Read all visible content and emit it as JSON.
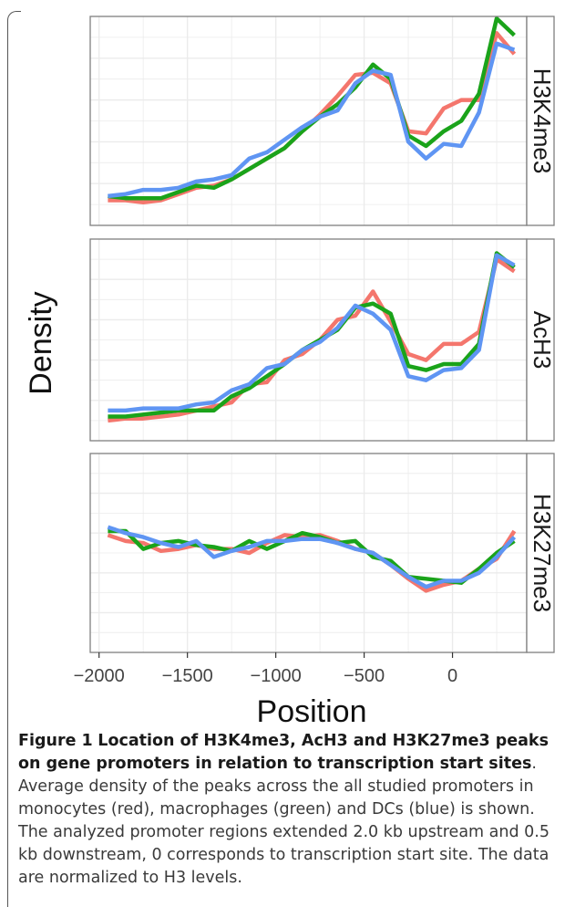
{
  "figure": {
    "caption_label": "Figure 1",
    "caption_title": "Location of H3K4me3, AcH3 and H3K27me3 peaks on gene promoters in relation to transcription start sites",
    "caption_body": ". Average density of the peaks across the all studied promoters in monocytes (red), macrophages (green) and DCs (blue) is shown. The analyzed promoter regions extended 2.0 kb upstream and 0.5 kb downstream, 0 corresponds to transcription start site. The data are normalized to H3 levels."
  },
  "colors": {
    "monocytes": "#f4766d",
    "macrophages": "#1aa31a",
    "dcs": "#5f95f3",
    "grid": "#ebebeb",
    "panel_border": "#7f7f7f"
  },
  "chart_data": {
    "type": "line",
    "xlabel": "Position",
    "ylabel": "Density",
    "xlim": [
      -2050,
      420
    ],
    "x_ticks": [
      -2000,
      -1500,
      -1000,
      -500,
      0
    ],
    "x_tick_labels": [
      "−2000",
      "−1500",
      "−1000",
      "−500",
      "0"
    ],
    "grid": true,
    "facets": [
      {
        "label": "H3K4me3",
        "ylim": [
          0,
          1
        ],
        "series": [
          {
            "color_key": "monocytes",
            "x": [
              -1950,
              -1850,
              -1750,
              -1650,
              -1550,
              -1450,
              -1350,
              -1250,
              -1150,
              -1050,
              -950,
              -850,
              -750,
              -650,
              -550,
              -450,
              -350,
              -250,
              -150,
              -50,
              50,
              150,
              250,
              350
            ],
            "y": [
              0.12,
              0.12,
              0.11,
              0.12,
              0.15,
              0.18,
              0.19,
              0.22,
              0.27,
              0.32,
              0.37,
              0.45,
              0.53,
              0.62,
              0.72,
              0.73,
              0.68,
              0.45,
              0.44,
              0.56,
              0.6,
              0.6,
              0.92,
              0.82
            ]
          },
          {
            "color_key": "macrophages",
            "x": [
              -1950,
              -1850,
              -1750,
              -1650,
              -1550,
              -1450,
              -1350,
              -1250,
              -1150,
              -1050,
              -950,
              -850,
              -750,
              -650,
              -550,
              -450,
              -350,
              -250,
              -150,
              -50,
              50,
              150,
              250,
              350
            ],
            "y": [
              0.14,
              0.13,
              0.13,
              0.13,
              0.16,
              0.19,
              0.18,
              0.22,
              0.27,
              0.32,
              0.37,
              0.45,
              0.52,
              0.58,
              0.66,
              0.77,
              0.7,
              0.43,
              0.38,
              0.45,
              0.5,
              0.63,
              0.99,
              0.91
            ]
          },
          {
            "color_key": "dcs",
            "x": [
              -1950,
              -1850,
              -1750,
              -1650,
              -1550,
              -1450,
              -1350,
              -1250,
              -1150,
              -1050,
              -950,
              -850,
              -750,
              -650,
              -550,
              -450,
              -350,
              -250,
              -150,
              -50,
              50,
              150,
              250,
              350
            ],
            "y": [
              0.14,
              0.15,
              0.17,
              0.17,
              0.18,
              0.21,
              0.22,
              0.24,
              0.32,
              0.35,
              0.41,
              0.47,
              0.52,
              0.55,
              0.68,
              0.74,
              0.72,
              0.4,
              0.32,
              0.39,
              0.38,
              0.54,
              0.87,
              0.84
            ]
          }
        ]
      },
      {
        "label": "AcH3",
        "ylim": [
          0,
          1
        ],
        "series": [
          {
            "color_key": "monocytes",
            "x": [
              -1950,
              -1850,
              -1750,
              -1650,
              -1550,
              -1450,
              -1350,
              -1250,
              -1150,
              -1050,
              -950,
              -850,
              -750,
              -650,
              -550,
              -450,
              -350,
              -250,
              -150,
              -50,
              50,
              150,
              250,
              350
            ],
            "y": [
              0.1,
              0.11,
              0.11,
              0.12,
              0.13,
              0.15,
              0.17,
              0.19,
              0.28,
              0.29,
              0.4,
              0.43,
              0.5,
              0.6,
              0.62,
              0.74,
              0.59,
              0.43,
              0.4,
              0.48,
              0.48,
              0.54,
              0.9,
              0.84
            ]
          },
          {
            "color_key": "macrophages",
            "x": [
              -1950,
              -1850,
              -1750,
              -1650,
              -1550,
              -1450,
              -1350,
              -1250,
              -1150,
              -1050,
              -950,
              -850,
              -750,
              -650,
              -550,
              -450,
              -350,
              -250,
              -150,
              -50,
              50,
              150,
              250,
              350
            ],
            "y": [
              0.12,
              0.12,
              0.13,
              0.14,
              0.15,
              0.15,
              0.15,
              0.22,
              0.26,
              0.32,
              0.38,
              0.45,
              0.5,
              0.55,
              0.66,
              0.68,
              0.63,
              0.37,
              0.35,
              0.38,
              0.38,
              0.48,
              0.93,
              0.86
            ]
          },
          {
            "color_key": "dcs",
            "x": [
              -1950,
              -1850,
              -1750,
              -1650,
              -1550,
              -1450,
              -1350,
              -1250,
              -1150,
              -1050,
              -950,
              -850,
              -750,
              -650,
              -550,
              -450,
              -350,
              -250,
              -150,
              -50,
              50,
              150,
              250,
              350
            ],
            "y": [
              0.15,
              0.15,
              0.16,
              0.16,
              0.16,
              0.18,
              0.19,
              0.25,
              0.28,
              0.36,
              0.38,
              0.45,
              0.49,
              0.56,
              0.67,
              0.63,
              0.55,
              0.32,
              0.3,
              0.35,
              0.36,
              0.45,
              0.92,
              0.87
            ]
          }
        ]
      },
      {
        "label": "H3K27me3",
        "ylim": [
          0,
          1
        ],
        "series": [
          {
            "color_key": "monocytes",
            "x": [
              -1950,
              -1850,
              -1750,
              -1650,
              -1550,
              -1450,
              -1350,
              -1250,
              -1150,
              -1050,
              -950,
              -850,
              -750,
              -650,
              -550,
              -450,
              -350,
              -250,
              -150,
              -50,
              50,
              150,
              250,
              350
            ],
            "y": [
              0.59,
              0.56,
              0.55,
              0.51,
              0.52,
              0.54,
              0.52,
              0.52,
              0.5,
              0.55,
              0.59,
              0.58,
              0.59,
              0.56,
              0.52,
              0.5,
              0.44,
              0.37,
              0.31,
              0.34,
              0.36,
              0.42,
              0.47,
              0.61
            ]
          },
          {
            "color_key": "macrophages",
            "x": [
              -1950,
              -1850,
              -1750,
              -1650,
              -1550,
              -1450,
              -1350,
              -1250,
              -1150,
              -1050,
              -950,
              -850,
              -750,
              -650,
              -550,
              -450,
              -350,
              -250,
              -150,
              -50,
              50,
              150,
              250,
              350
            ],
            "y": [
              0.61,
              0.61,
              0.52,
              0.55,
              0.56,
              0.54,
              0.53,
              0.51,
              0.56,
              0.52,
              0.56,
              0.6,
              0.58,
              0.55,
              0.56,
              0.48,
              0.46,
              0.38,
              0.37,
              0.36,
              0.35,
              0.42,
              0.5,
              0.56
            ]
          },
          {
            "color_key": "dcs",
            "x": [
              -1950,
              -1850,
              -1750,
              -1650,
              -1550,
              -1450,
              -1350,
              -1250,
              -1150,
              -1050,
              -950,
              -850,
              -750,
              -650,
              -550,
              -450,
              -350,
              -250,
              -150,
              -50,
              50,
              150,
              250,
              350
            ],
            "y": [
              0.63,
              0.6,
              0.58,
              0.55,
              0.53,
              0.56,
              0.48,
              0.51,
              0.53,
              0.56,
              0.56,
              0.57,
              0.57,
              0.55,
              0.52,
              0.5,
              0.44,
              0.38,
              0.33,
              0.36,
              0.36,
              0.4,
              0.48,
              0.58
            ]
          }
        ]
      }
    ]
  }
}
